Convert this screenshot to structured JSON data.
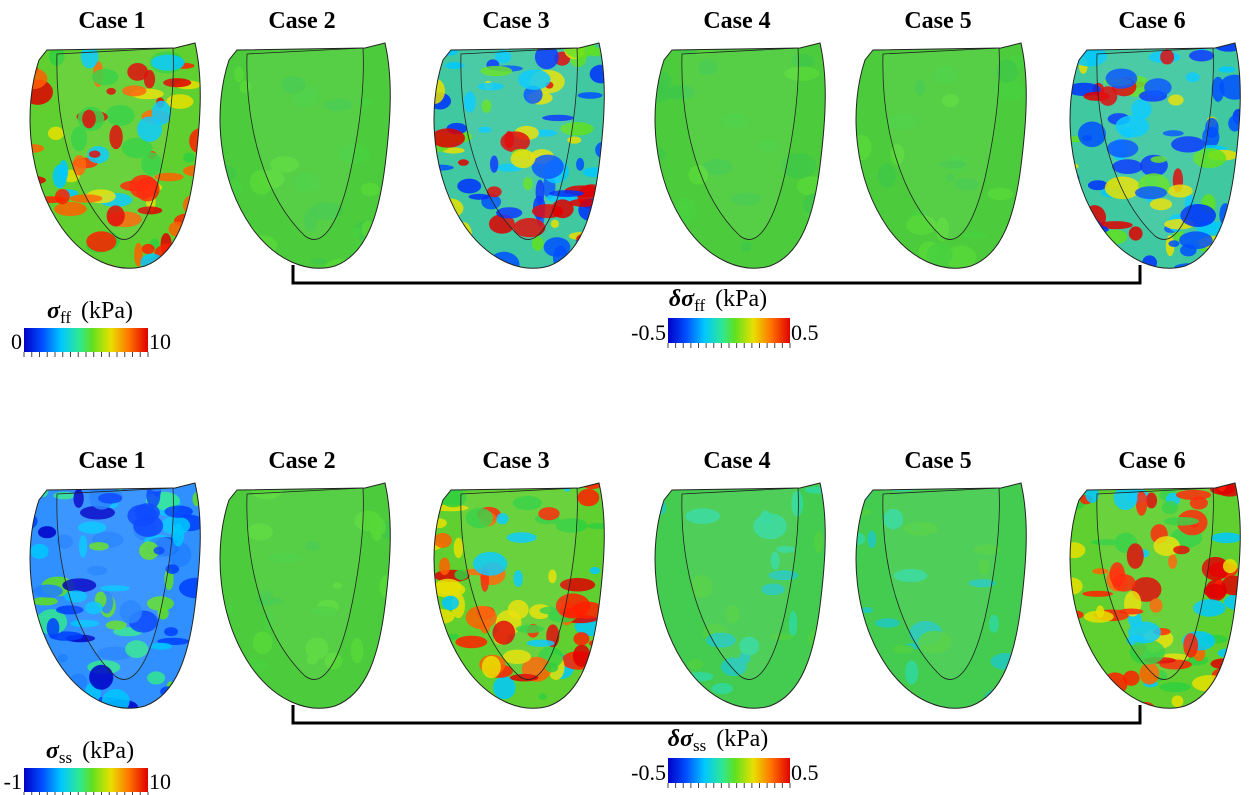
{
  "rows": [
    {
      "cases": [
        "Case 1",
        "Case 2",
        "Case 3",
        "Case 4",
        "Case 5",
        "Case 6"
      ],
      "absolute_colorbar": {
        "symbol": "σ",
        "subscript": "ff",
        "unit": "(kPa)",
        "min": "0",
        "max": "10"
      },
      "difference_colorbar": {
        "symbol": "δσ",
        "subscript": "ff",
        "unit": "(kPa)",
        "min": "-0.5",
        "max": "0.5"
      }
    },
    {
      "cases": [
        "Case 1",
        "Case 2",
        "Case 3",
        "Case 4",
        "Case 5",
        "Case 6"
      ],
      "absolute_colorbar": {
        "symbol": "σ",
        "subscript": "ss",
        "unit": "(kPa)",
        "min": "-1",
        "max": "10"
      },
      "difference_colorbar": {
        "symbol": "δσ",
        "subscript": "ss",
        "unit": "(kPa)",
        "min": "-0.5",
        "max": "0.5"
      }
    }
  ]
}
